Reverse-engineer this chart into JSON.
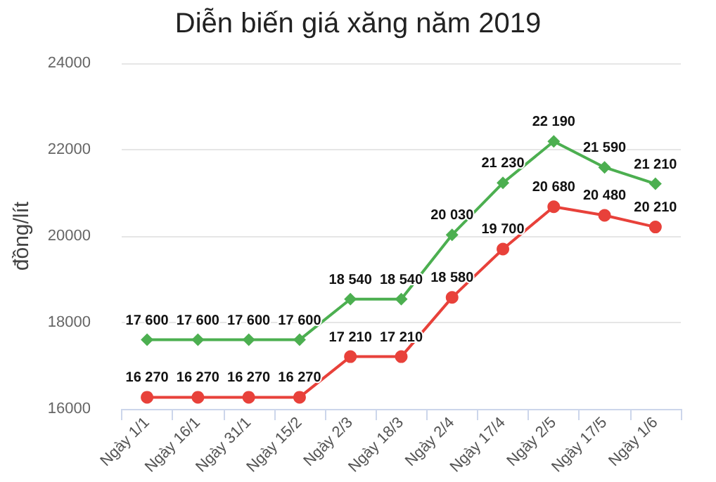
{
  "chart_data": {
    "type": "line",
    "title": "Diễn biến giá xăng năm 2019",
    "ylabel": "đồng/lít",
    "categories": [
      "Ngày 1/1",
      "Ngày 16/1",
      "Ngày 31/1",
      "Ngày 15/2",
      "Ngày 2/3",
      "Ngày 18/3",
      "Ngày 2/4",
      "Ngày 17/4",
      "Ngày 2/5",
      "Ngày 17/5",
      "Ngày 1/6"
    ],
    "series": [
      {
        "color": "#4caf50",
        "marker": "diamond",
        "values": [
          17600,
          17600,
          17600,
          17600,
          18540,
          18540,
          20030,
          21230,
          22190,
          21590,
          21210
        ],
        "value_labels": [
          "17 600",
          "17 600",
          "17 600",
          "17 600",
          "18 540",
          "18 540",
          "20 030",
          "21 230",
          "22 190",
          "21 590",
          "21 210"
        ]
      },
      {
        "color": "#e8413a",
        "marker": "circle",
        "values": [
          16270,
          16270,
          16270,
          16270,
          17210,
          17210,
          18580,
          19700,
          20680,
          20480,
          20210
        ],
        "value_labels": [
          "16 270",
          "16 270",
          "16 270",
          "16 270",
          "17 210",
          "17 210",
          "18 580",
          "19 700",
          "20 680",
          "20 480",
          "20 210"
        ]
      }
    ],
    "ylim": [
      16000,
      24000
    ],
    "yticks": [
      16000,
      18000,
      20000,
      22000,
      24000
    ],
    "grid": "y"
  }
}
